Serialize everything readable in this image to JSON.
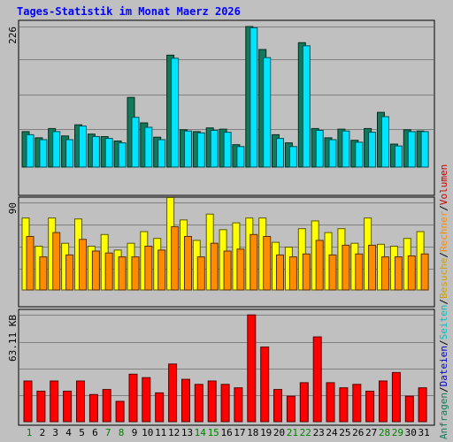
{
  "chart_data": {
    "type": "bar",
    "title": "Tages-Statistik im Monat Maerz 2026",
    "x": [
      "1",
      "2",
      "3",
      "4",
      "5",
      "6",
      "7",
      "8",
      "9",
      "10",
      "11",
      "12",
      "13",
      "14",
      "15",
      "16",
      "17",
      "18",
      "19",
      "20",
      "21",
      "22",
      "23",
      "24",
      "25",
      "26",
      "27",
      "28",
      "29",
      "30",
      "31"
    ],
    "weekend_days": [
      "1",
      "7",
      "8",
      "14",
      "15",
      "21",
      "22",
      "28",
      "29"
    ],
    "panels": [
      {
        "id": "top",
        "ymax_label": "226",
        "ymax": 226,
        "series": [
          {
            "name": "Anfragen",
            "color": "#127a5a",
            "values": [
              57,
              47,
              62,
              50,
              68,
              53,
              49,
              42,
              112,
              71,
              48,
              180,
              60,
              57,
              63,
              61,
              36,
              226,
              189,
              52,
              39,
              200,
              62,
              47,
              61,
              43,
              62,
              88,
              37,
              60,
              58
            ]
          },
          {
            "name": "Dateien",
            "color": "#00e4ff",
            "values": [
              52,
              44,
              57,
              44,
              66,
              49,
              46,
              39,
              80,
              64,
              44,
              175,
              58,
              55,
              59,
              56,
              33,
              224,
              176,
              46,
              33,
              195,
              59,
              44,
              58,
              40,
              56,
              81,
              34,
              57,
              57
            ]
          }
        ]
      },
      {
        "id": "middle",
        "ymax_label": "90",
        "ymax": 90,
        "series": [
          {
            "name": "Seiten",
            "color": "#ffff00",
            "values": [
              74,
              45,
              74,
              48,
              73,
              45,
              57,
              41,
              48,
              60,
              53,
              95,
              72,
              51,
              78,
              62,
              69,
              74,
              74,
              49,
              44,
              63,
              71,
              59,
              63,
              48,
              74,
              47,
              45,
              53,
              60
            ]
          },
          {
            "name": "Besuche",
            "color": "#ff8c00",
            "values": [
              55,
              34,
              59,
              36,
              52,
              40,
              38,
              34,
              34,
              45,
              41,
              65,
              55,
              34,
              48,
              40,
              42,
              57,
              55,
              36,
              34,
              37,
              51,
              36,
              46,
              37,
              46,
              34,
              34,
              35,
              37
            ]
          }
        ]
      },
      {
        "id": "bottom",
        "ymax_label": "63.11 KB",
        "ymax": 63.11,
        "series": [
          {
            "name": "Rechner",
            "color": "#ff0000",
            "values": [
              24,
              18,
              24,
              18,
              24,
              16,
              19,
              12,
              28,
              26,
              17,
              34,
              25,
              22,
              24,
              22,
              20,
              63,
              44,
              19,
              15,
              23,
              50,
              23,
              20,
              22,
              18,
              24,
              29,
              15,
              20
            ]
          }
        ]
      }
    ],
    "right_legend": [
      {
        "text": "Anfragen",
        "color": "#127a5a"
      },
      {
        "text": "/",
        "color": "#000000"
      },
      {
        "text": "Dateien",
        "color": "#0000cc"
      },
      {
        "text": "/",
        "color": "#000000"
      },
      {
        "text": "Seiten",
        "color": "#00c0c0"
      },
      {
        "text": "/",
        "color": "#000000"
      },
      {
        "text": "Besuche",
        "color": "#d0a000"
      },
      {
        "text": "/",
        "color": "#000000"
      },
      {
        "text": "Rechner",
        "color": "#ff8c00"
      },
      {
        "text": "/",
        "color": "#000000"
      },
      {
        "text": "Volumen",
        "color": "#cc0000"
      }
    ]
  }
}
